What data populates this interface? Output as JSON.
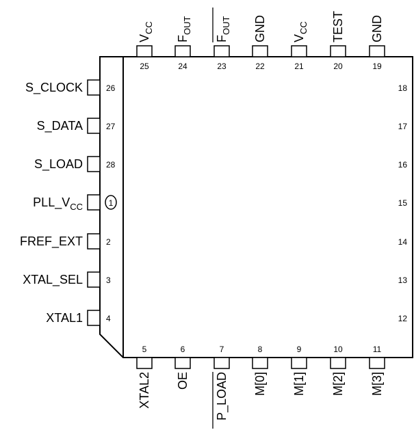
{
  "package": {
    "left_pins": [
      {
        "number": "26",
        "label": "S_CLOCK"
      },
      {
        "number": "27",
        "label": "S_DATA"
      },
      {
        "number": "28",
        "label": "S_LOAD"
      },
      {
        "number": "1",
        "label": "PLL_V",
        "label_sub": "CC"
      },
      {
        "number": "2",
        "label": "FREF_EXT"
      },
      {
        "number": "3",
        "label": "XTAL_SEL"
      },
      {
        "number": "4",
        "label": "XTAL1"
      }
    ],
    "top_pins": [
      {
        "number": "25",
        "label": "V",
        "label_sub": "CC"
      },
      {
        "number": "24",
        "label": "F",
        "label_sub": "OUT"
      },
      {
        "number": "23",
        "label": "F",
        "label_sub": "OUT",
        "overline": true
      },
      {
        "number": "22",
        "label": "GND"
      },
      {
        "number": "21",
        "label": "V",
        "label_sub": "CC"
      },
      {
        "number": "20",
        "label": "TEST"
      },
      {
        "number": "19",
        "label": "GND"
      }
    ],
    "bottom_pins": [
      {
        "number": "5",
        "label": "XTAL2"
      },
      {
        "number": "6",
        "label": "OE"
      },
      {
        "number": "7",
        "label": "P_LOAD",
        "overline": true
      },
      {
        "number": "8",
        "label": "M[0]"
      },
      {
        "number": "9",
        "label": "M[1]"
      },
      {
        "number": "10",
        "label": "M[2]"
      },
      {
        "number": "11",
        "label": "M[3]"
      }
    ],
    "right_numbers": [
      "18",
      "17",
      "16",
      "15",
      "14",
      "13",
      "12"
    ]
  }
}
